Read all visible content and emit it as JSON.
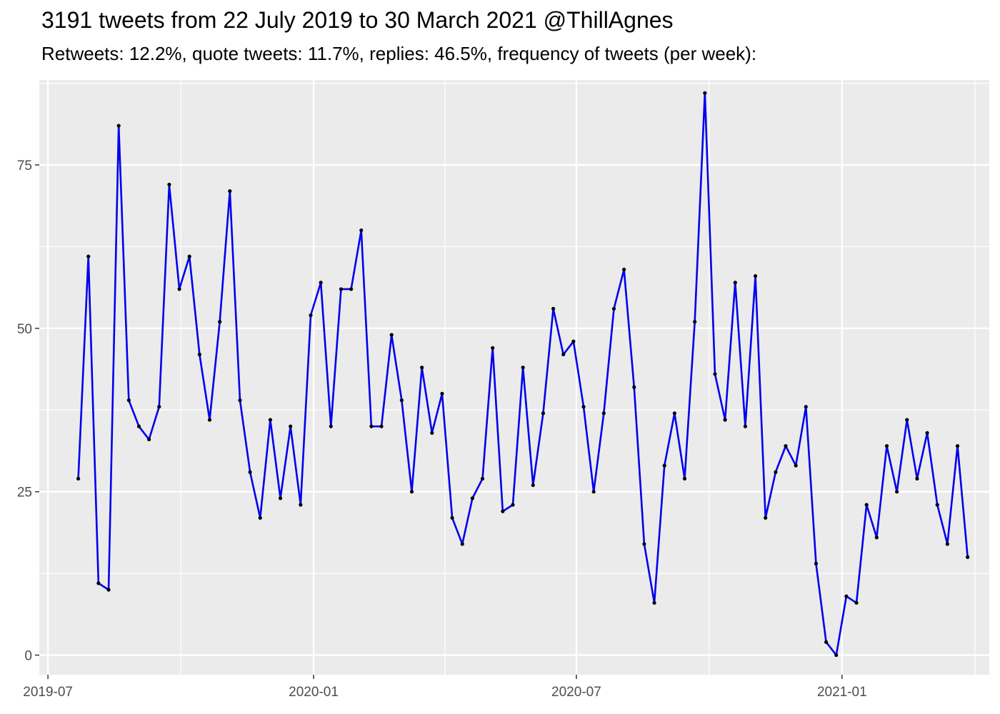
{
  "chart_data": {
    "type": "line",
    "title": "3191 tweets from 22 July 2019 to 30 March 2021 @ThillAgnes",
    "subtitle": "Retweets: 12.2%, quote tweets: 11.7%, replies: 46.5%, frequency of tweets (per week):",
    "xlabel": "",
    "ylabel": "",
    "x_ticks": [
      "2019-07",
      "2020-01",
      "2020-07",
      "2021-01"
    ],
    "y_ticks": [
      0,
      25,
      50,
      75
    ],
    "ylim": [
      -3,
      88
    ],
    "xlim": [
      "2019-06-25",
      "2021-04-13"
    ],
    "grid": true,
    "line_color": "#0000ee",
    "point_color": "#000000",
    "panel_color": "#ebebeb",
    "series": [
      {
        "x": [
          "2019-07-22",
          "2019-07-29",
          "2019-08-05",
          "2019-08-12",
          "2019-08-19",
          "2019-08-26",
          "2019-09-02",
          "2019-09-09",
          "2019-09-16",
          "2019-09-23",
          "2019-09-30",
          "2019-10-07",
          "2019-10-14",
          "2019-10-21",
          "2019-10-28",
          "2019-11-04",
          "2019-11-11",
          "2019-11-18",
          "2019-11-25",
          "2019-12-02",
          "2019-12-09",
          "2019-12-16",
          "2019-12-23",
          "2019-12-30",
          "2020-01-06",
          "2020-01-13",
          "2020-01-20",
          "2020-01-27",
          "2020-02-03",
          "2020-02-10",
          "2020-02-17",
          "2020-02-24",
          "2020-03-02",
          "2020-03-09",
          "2020-03-16",
          "2020-03-23",
          "2020-03-30",
          "2020-04-06",
          "2020-04-13",
          "2020-04-20",
          "2020-04-27",
          "2020-05-04",
          "2020-05-11",
          "2020-05-18",
          "2020-05-25",
          "2020-06-01",
          "2020-06-08",
          "2020-06-15",
          "2020-06-22",
          "2020-06-29",
          "2020-07-06",
          "2020-07-13",
          "2020-07-20",
          "2020-07-27",
          "2020-08-03",
          "2020-08-10",
          "2020-08-17",
          "2020-08-24",
          "2020-08-31",
          "2020-09-07",
          "2020-09-14",
          "2020-09-21",
          "2020-09-28",
          "2020-10-05",
          "2020-10-12",
          "2020-10-19",
          "2020-10-26",
          "2020-11-02",
          "2020-11-09",
          "2020-11-16",
          "2020-11-23",
          "2020-11-30",
          "2020-12-07",
          "2020-12-14",
          "2020-12-21",
          "2020-12-28",
          "2021-01-04",
          "2021-01-11",
          "2021-01-18",
          "2021-01-25",
          "2021-02-01",
          "2021-02-08",
          "2021-02-15",
          "2021-02-22",
          "2021-03-01",
          "2021-03-08",
          "2021-03-15",
          "2021-03-22",
          "2021-03-29"
        ],
        "values": [
          27,
          61,
          11,
          10,
          81,
          39,
          35,
          33,
          38,
          72,
          56,
          61,
          46,
          36,
          51,
          71,
          39,
          28,
          21,
          36,
          24,
          35,
          23,
          52,
          57,
          35,
          56,
          56,
          65,
          35,
          35,
          49,
          39,
          25,
          44,
          34,
          40,
          21,
          17,
          24,
          27,
          47,
          22,
          23,
          44,
          26,
          37,
          53,
          46,
          48,
          38,
          25,
          37,
          53,
          59,
          41,
          17,
          8,
          29,
          37,
          27,
          51,
          86,
          43,
          36,
          57,
          35,
          58,
          21,
          28,
          32,
          29,
          38,
          14,
          2,
          0,
          9,
          8,
          23,
          18,
          32,
          25,
          36,
          27,
          34,
          23,
          17,
          32,
          15
        ]
      }
    ]
  }
}
